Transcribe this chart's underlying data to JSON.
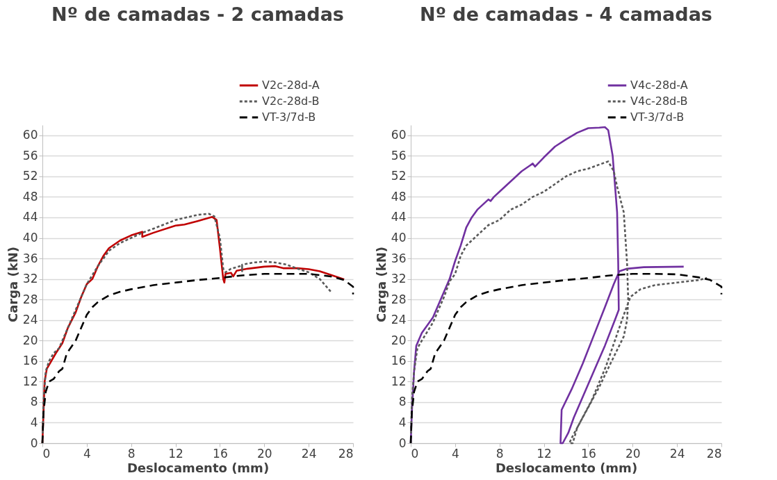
{
  "chart_data": [
    {
      "type": "line",
      "title": "Nº de camadas - 2 camadas",
      "xlabel": "Deslocamento (mm)",
      "ylabel": "Carga (kN)",
      "xlim": [
        0,
        28
      ],
      "ylim": [
        0,
        62
      ],
      "xticks": [
        0,
        4,
        8,
        12,
        16,
        20,
        24,
        28
      ],
      "yticks": [
        0,
        4,
        8,
        12,
        16,
        20,
        24,
        28,
        32,
        36,
        40,
        44,
        48,
        52,
        56,
        60
      ],
      "grid": "y",
      "legend": "top right",
      "marker": "none",
      "series": [
        {
          "name": "V2c-28d-A",
          "color": "#c00000",
          "line_style": "solid",
          "x": [
            0,
            0.1,
            0.2,
            0.4,
            0.8,
            1.2,
            1.8,
            2.3,
            3,
            3.5,
            4,
            4.5,
            5,
            5.5,
            6,
            7,
            8,
            9,
            9,
            10,
            12,
            12.8,
            14,
            15.3,
            15.7,
            16,
            16.2,
            16.3,
            16.4,
            16.5,
            17,
            17.2,
            17.5,
            18.5,
            20,
            21,
            21.7,
            23,
            24,
            25,
            26,
            27.2
          ],
          "values": [
            0,
            6,
            12,
            14.5,
            16,
            17.5,
            19.5,
            22.5,
            25.5,
            28.5,
            31,
            32,
            34.5,
            36.5,
            38,
            39.5,
            40.5,
            41.2,
            40.2,
            41,
            42.4,
            42.6,
            43.3,
            44.1,
            43.5,
            38,
            34,
            32,
            31.3,
            33,
            33.2,
            32.5,
            33.6,
            34,
            34.4,
            34.5,
            34.1,
            34.1,
            33.9,
            33.5,
            32.8,
            31.9
          ]
        },
        {
          "name": "V2c-28d-B",
          "color": "#595959",
          "line_style": "dotted",
          "x": [
            0,
            0.1,
            0.3,
            0.6,
            1,
            1.5,
            2,
            2.5,
            3,
            3.5,
            4,
            5,
            6,
            7,
            8,
            9,
            10,
            12,
            14,
            15,
            15.5,
            16,
            16.3,
            16.5,
            17,
            18,
            18,
            18,
            19,
            20,
            21,
            22,
            23,
            24,
            25,
            25.6,
            26
          ],
          "values": [
            0,
            8,
            14,
            16,
            17.5,
            18.5,
            21,
            23.5,
            26,
            28.5,
            31,
            34.5,
            37.5,
            39,
            40,
            41,
            41.8,
            43.5,
            44.5,
            44.7,
            44.2,
            40,
            34,
            33.3,
            34,
            34.6,
            33.5,
            34.8,
            35.2,
            35.4,
            35.2,
            34.8,
            34,
            33.3,
            32,
            30.5,
            29.5
          ]
        },
        {
          "name": "VT-3/7d-B",
          "color": "#000000",
          "line_style": "dashed",
          "x": [
            0,
            0.1,
            0.3,
            0.6,
            1,
            1.5,
            1.8,
            2.2,
            3,
            3.5,
            4,
            4.5,
            5,
            6,
            7,
            8,
            10,
            12,
            14,
            16,
            18,
            20,
            22,
            24,
            26,
            27.2,
            28,
            28
          ],
          "values": [
            0,
            6,
            10,
            12,
            12.5,
            14,
            14.5,
            17.5,
            20,
            22.5,
            25,
            26.5,
            27.5,
            28.8,
            29.5,
            30,
            30.8,
            31.3,
            31.8,
            32.2,
            32.7,
            33,
            33,
            33,
            32.5,
            31.8,
            30.5,
            29
          ]
        }
      ]
    },
    {
      "type": "line",
      "title": "Nº de camadas - 4 camadas",
      "xlabel": "Deslocamento (mm)",
      "ylabel": "Carga (kN)",
      "xlim": [
        0,
        28
      ],
      "ylim": [
        0,
        62
      ],
      "xticks": [
        0,
        4,
        8,
        12,
        16,
        20,
        24,
        28
      ],
      "yticks": [
        0,
        4,
        8,
        12,
        16,
        20,
        24,
        28,
        32,
        36,
        40,
        44,
        48,
        52,
        56,
        60
      ],
      "grid": "y",
      "legend": "top right",
      "marker": "none",
      "series": [
        {
          "name": "V4c-28d-A",
          "color": "#7030a0",
          "line_style": "solid",
          "x": [
            0,
            0.1,
            0.3,
            0.5,
            1,
            2,
            3,
            3.5,
            4,
            4.5,
            5,
            5.5,
            6,
            7,
            7.2,
            7.5,
            8,
            9,
            10,
            11,
            11.2,
            12,
            13,
            14,
            15,
            16,
            17,
            17.5,
            17.8,
            18.2,
            18.6,
            18.7,
            18.75,
            18.4,
            17.5,
            16.5,
            15.5,
            14.7,
            14.2,
            13.7,
            13.5,
            13.6,
            14.5,
            15.5,
            16.5,
            17.5,
            18.3,
            18.8,
            19.5,
            21,
            24.6
          ],
          "values": [
            0,
            6,
            14,
            19,
            21.5,
            24.5,
            29.5,
            32,
            35.5,
            38.5,
            42,
            44,
            45.5,
            47.5,
            47.2,
            48,
            49,
            51,
            53,
            54.5,
            53.9,
            55.7,
            57.8,
            59.2,
            60.5,
            61.4,
            61.5,
            61.6,
            61,
            56,
            45,
            35,
            26,
            24,
            19,
            14,
            9,
            5,
            2,
            0,
            0,
            6.5,
            10.5,
            15.5,
            21,
            26.5,
            31,
            33.5,
            34,
            34.3,
            34.4
          ]
        },
        {
          "name": "V4c-28d-B",
          "color": "#595959",
          "line_style": "dotted",
          "x": [
            0,
            0.1,
            0.3,
            0.6,
            1,
            2,
            3,
            3.5,
            4,
            4.5,
            5,
            6,
            7,
            8,
            9,
            10,
            11,
            12,
            13,
            14,
            15,
            16,
            17,
            17.8,
            18.3,
            18.6,
            19.2,
            19.5,
            19.6,
            19.5,
            19.2,
            18,
            17,
            16,
            15,
            14.5,
            14.3,
            14.6,
            15,
            16.3,
            17.6,
            19.2,
            19.8,
            20.7,
            22,
            24,
            26,
            26.7
          ],
          "values": [
            0,
            8,
            14,
            18.5,
            20,
            23.5,
            28.5,
            31.5,
            33,
            36.5,
            38.5,
            40.5,
            42.5,
            43.5,
            45.5,
            46.5,
            48,
            49,
            50.5,
            52,
            53,
            53.5,
            54.3,
            54.9,
            53,
            50,
            45,
            35,
            28,
            24,
            20.8,
            15.5,
            11,
            7,
            3,
            1,
            0,
            0,
            3,
            8.3,
            15,
            25,
            28.5,
            30,
            30.8,
            31.3,
            31.8,
            32.2
          ]
        },
        {
          "name": "VT-3/7d-B",
          "color": "#000000",
          "line_style": "dashed",
          "x": [
            0,
            0.1,
            0.3,
            0.6,
            1,
            1.5,
            1.8,
            2.2,
            3,
            3.5,
            4,
            4.5,
            5,
            6,
            7,
            8,
            10,
            12,
            14,
            16,
            18,
            20,
            22,
            24,
            26,
            27,
            28,
            28
          ],
          "values": [
            0,
            6,
            10,
            12,
            12.5,
            14,
            14.5,
            17.5,
            20,
            22.5,
            25,
            26.5,
            27.5,
            28.8,
            29.5,
            30,
            30.8,
            31.3,
            31.8,
            32.2,
            32.7,
            33,
            33,
            32.9,
            32.3,
            31.8,
            30.5,
            29
          ]
        }
      ]
    }
  ]
}
